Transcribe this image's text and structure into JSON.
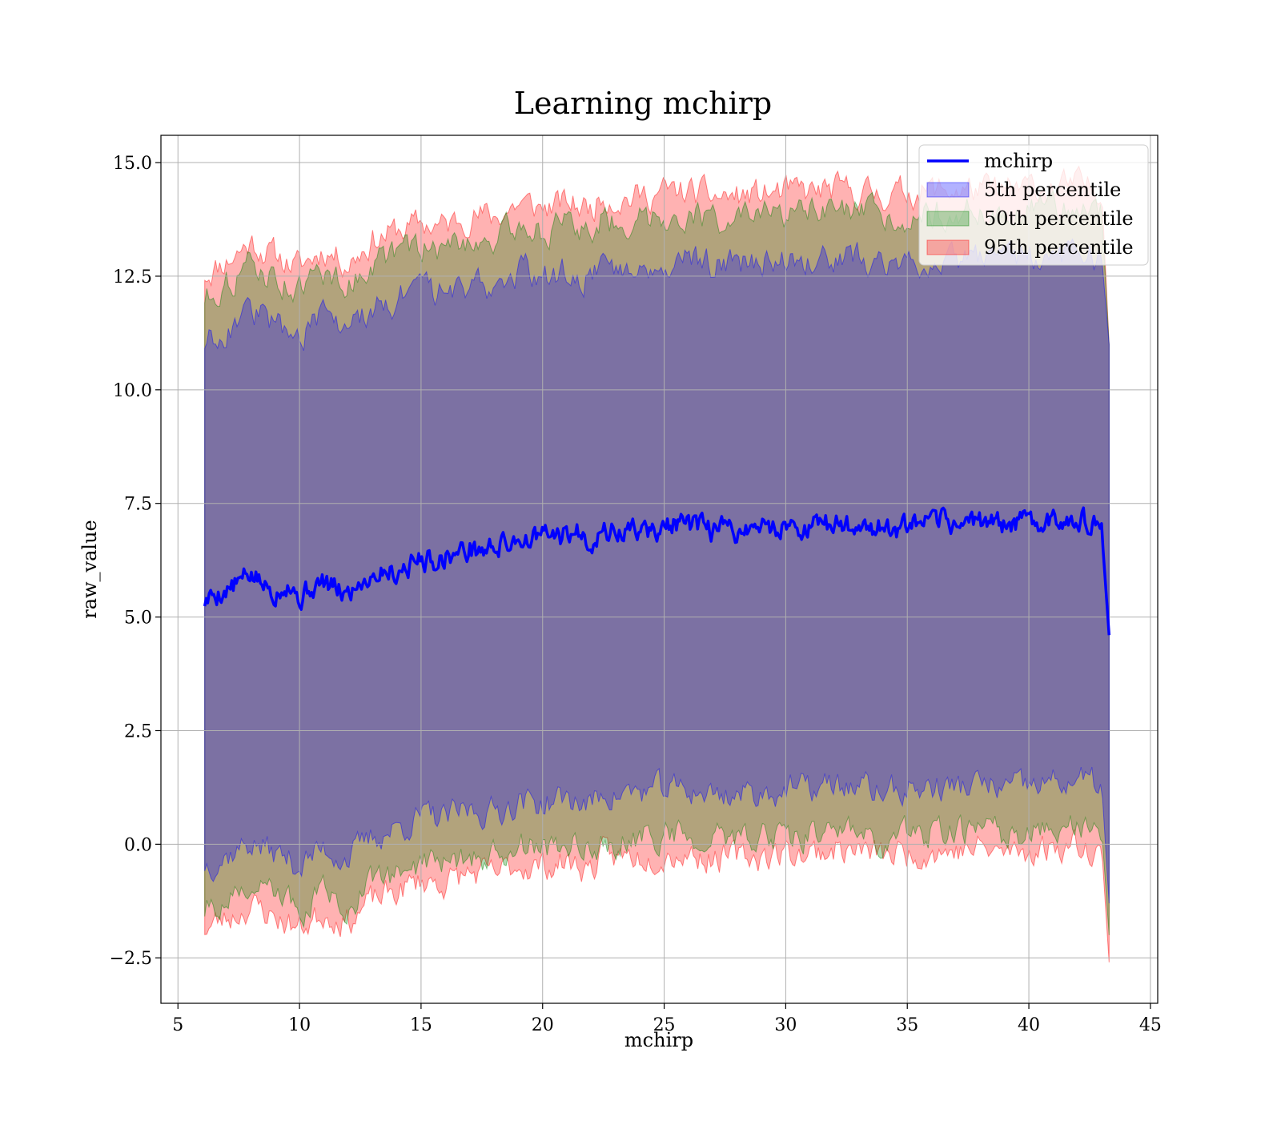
{
  "chart_data": {
    "type": "area",
    "title": "Learning mchirp",
    "xlabel": "mchirp",
    "ylabel": "raw_value",
    "xlim": [
      4.3,
      45.3
    ],
    "ylim": [
      -3.5,
      15.6
    ],
    "xticks": [
      5,
      10,
      15,
      20,
      25,
      30,
      35,
      40,
      45
    ],
    "yticks": [
      -2.5,
      0.0,
      2.5,
      5.0,
      7.5,
      10.0,
      12.5,
      15.0
    ],
    "xtick_labels": [
      "5",
      "10",
      "15",
      "20",
      "25",
      "30",
      "35",
      "40",
      "45"
    ],
    "ytick_labels": [
      "−2.5",
      "0.0",
      "2.5",
      "5.0",
      "7.5",
      "10.0",
      "12.5",
      "15.0"
    ],
    "grid": true,
    "legend_position": "top-right",
    "colors": {
      "line": "#0000ff",
      "band5": "#0000ff",
      "band50": "#008000",
      "band95": "#ff0000"
    },
    "series": [
      {
        "name": "mchirp",
        "style": "line",
        "x": [
          6.1,
          6.5,
          7.0,
          7.5,
          8.0,
          8.5,
          9.0,
          9.5,
          10.0,
          10.5,
          11.0,
          11.5,
          12.0,
          12.5,
          13.0,
          13.5,
          14.0,
          14.5,
          15.0,
          15.5,
          16.0,
          16.5,
          17.0,
          17.5,
          18.0,
          18.5,
          19.0,
          19.5,
          20.0,
          20.5,
          21.0,
          21.5,
          22.0,
          22.5,
          23.0,
          23.5,
          24.0,
          24.5,
          25.0,
          25.5,
          26.0,
          26.5,
          27.0,
          27.5,
          28.0,
          28.5,
          29.0,
          29.5,
          30.0,
          30.5,
          31.0,
          31.5,
          32.0,
          32.5,
          33.0,
          33.5,
          34.0,
          34.5,
          35.0,
          35.5,
          36.0,
          36.5,
          37.0,
          37.5,
          38.0,
          38.5,
          39.0,
          39.5,
          40.0,
          40.5,
          41.0,
          41.5,
          42.0,
          42.5,
          43.0,
          43.3
        ],
        "y": [
          5.35,
          5.5,
          5.6,
          5.75,
          5.95,
          5.7,
          5.55,
          5.8,
          5.4,
          5.65,
          5.75,
          5.6,
          5.5,
          5.8,
          5.95,
          6.05,
          6.0,
          6.15,
          6.3,
          6.25,
          6.35,
          6.4,
          6.5,
          6.45,
          6.55,
          6.6,
          6.75,
          6.7,
          6.8,
          6.75,
          6.8,
          6.85,
          6.7,
          6.9,
          6.85,
          6.9,
          6.95,
          6.85,
          7.0,
          7.05,
          7.0,
          6.95,
          6.9,
          6.95,
          6.9,
          6.95,
          7.0,
          6.95,
          7.05,
          7.0,
          6.95,
          7.0,
          7.05,
          7.0,
          7.05,
          7.0,
          6.95,
          6.9,
          6.95,
          7.0,
          7.05,
          7.1,
          7.05,
          7.1,
          7.1,
          7.15,
          7.0,
          7.05,
          7.1,
          7.15,
          7.1,
          7.2,
          7.25,
          7.0,
          6.9,
          4.6
        ]
      },
      {
        "name": "5th percentile",
        "style": "band",
        "x": [
          6.1,
          7.0,
          8.0,
          9.0,
          10.0,
          11.0,
          12.0,
          13.0,
          14.0,
          15.0,
          16.0,
          17.0,
          18.0,
          19.0,
          20.0,
          21.0,
          22.0,
          22.5,
          23.0,
          24.0,
          25.0,
          26.0,
          27.0,
          28.0,
          29.0,
          30.0,
          31.0,
          32.0,
          33.0,
          34.0,
          35.0,
          36.0,
          37.0,
          38.0,
          39.0,
          40.0,
          41.0,
          42.0,
          43.0,
          43.3
        ],
        "y_lower": [
          -0.45,
          -0.25,
          0.05,
          -0.2,
          -0.45,
          -0.1,
          -0.3,
          0.15,
          0.35,
          0.6,
          0.55,
          0.75,
          0.7,
          0.95,
          0.9,
          1.0,
          0.85,
          1.15,
          1.1,
          1.15,
          1.2,
          1.2,
          1.1,
          1.1,
          1.15,
          1.2,
          1.2,
          1.3,
          1.25,
          1.15,
          1.2,
          1.25,
          1.25,
          1.3,
          1.2,
          1.25,
          1.35,
          1.4,
          1.3,
          -1.3
        ],
        "y_upper": [
          11.05,
          11.35,
          11.75,
          11.45,
          11.2,
          11.6,
          11.3,
          11.8,
          12.0,
          12.15,
          12.1,
          12.35,
          12.3,
          12.6,
          12.5,
          12.6,
          12.5,
          12.8,
          12.7,
          12.75,
          12.85,
          12.85,
          12.75,
          12.75,
          12.8,
          12.85,
          12.85,
          12.9,
          12.85,
          12.8,
          12.85,
          12.9,
          12.9,
          12.9,
          12.85,
          12.95,
          12.95,
          13.0,
          12.9,
          11.0
        ]
      },
      {
        "name": "50th percentile",
        "style": "band",
        "x": [
          6.1,
          7.0,
          8.0,
          9.0,
          10.0,
          11.0,
          12.0,
          13.0,
          14.0,
          15.0,
          16.0,
          17.0,
          18.0,
          19.0,
          20.0,
          21.0,
          22.0,
          22.5,
          23.0,
          24.0,
          25.0,
          26.0,
          27.0,
          28.0,
          29.0,
          30.0,
          31.0,
          32.0,
          33.0,
          34.0,
          35.0,
          36.0,
          37.0,
          38.0,
          39.0,
          40.0,
          41.0,
          42.0,
          43.0,
          43.3
        ],
        "y_lower": [
          -1.45,
          -1.25,
          -0.95,
          -1.2,
          -1.45,
          -1.1,
          -1.3,
          -0.85,
          -0.65,
          -0.4,
          -0.45,
          -0.25,
          -0.3,
          -0.05,
          -0.1,
          0.0,
          -0.15,
          0.15,
          0.1,
          0.15,
          0.2,
          0.2,
          0.1,
          0.1,
          0.15,
          0.2,
          0.2,
          0.3,
          0.25,
          0.15,
          0.2,
          0.25,
          0.25,
          0.3,
          0.2,
          0.25,
          0.35,
          0.4,
          0.3,
          -2.0
        ],
        "y_upper": [
          12.05,
          12.35,
          12.75,
          12.45,
          12.2,
          12.6,
          12.3,
          12.8,
          13.0,
          13.15,
          13.1,
          13.35,
          13.3,
          13.6,
          13.5,
          13.6,
          13.5,
          13.8,
          13.7,
          13.75,
          13.85,
          13.85,
          13.75,
          13.75,
          13.8,
          13.85,
          13.85,
          13.9,
          13.85,
          13.8,
          13.85,
          13.9,
          13.9,
          13.9,
          13.85,
          13.95,
          13.95,
          14.0,
          13.9,
          11.0
        ]
      },
      {
        "name": "95th percentile",
        "style": "band",
        "x": [
          6.1,
          7.0,
          8.0,
          9.0,
          10.0,
          11.0,
          12.0,
          13.0,
          14.0,
          15.0,
          16.0,
          17.0,
          18.0,
          19.0,
          20.0,
          21.0,
          22.0,
          22.5,
          23.0,
          24.0,
          25.0,
          26.0,
          27.0,
          28.0,
          29.0,
          30.0,
          31.0,
          32.0,
          33.0,
          34.0,
          35.0,
          36.0,
          37.0,
          38.0,
          39.0,
          40.0,
          41.0,
          42.0,
          43.0,
          43.3
        ],
        "y_lower": [
          -1.85,
          -1.65,
          -1.35,
          -1.6,
          -1.85,
          -1.5,
          -1.7,
          -1.25,
          -1.05,
          -0.8,
          -0.85,
          -0.65,
          -0.7,
          -0.45,
          -0.5,
          -0.4,
          -0.55,
          -0.25,
          -0.3,
          -0.25,
          -0.2,
          -0.2,
          -0.3,
          -0.3,
          -0.25,
          -0.2,
          -0.2,
          -0.1,
          -0.15,
          -0.25,
          -0.2,
          -0.15,
          -0.15,
          -0.1,
          -0.2,
          -0.15,
          -0.05,
          0.0,
          -0.1,
          -2.6
        ],
        "y_upper": [
          12.55,
          12.85,
          13.25,
          12.95,
          12.7,
          13.1,
          12.8,
          13.3,
          13.5,
          13.65,
          13.6,
          13.85,
          13.8,
          14.1,
          14.0,
          14.1,
          14.0,
          14.3,
          14.2,
          14.25,
          14.35,
          14.35,
          14.25,
          14.25,
          14.3,
          14.35,
          14.35,
          14.4,
          14.35,
          14.3,
          14.35,
          14.4,
          14.4,
          14.4,
          14.35,
          14.45,
          14.45,
          14.5,
          14.4,
          11.0
        ]
      }
    ],
    "legend": [
      "mchirp",
      "5th percentile",
      "50th percentile",
      "95th percentile"
    ]
  }
}
